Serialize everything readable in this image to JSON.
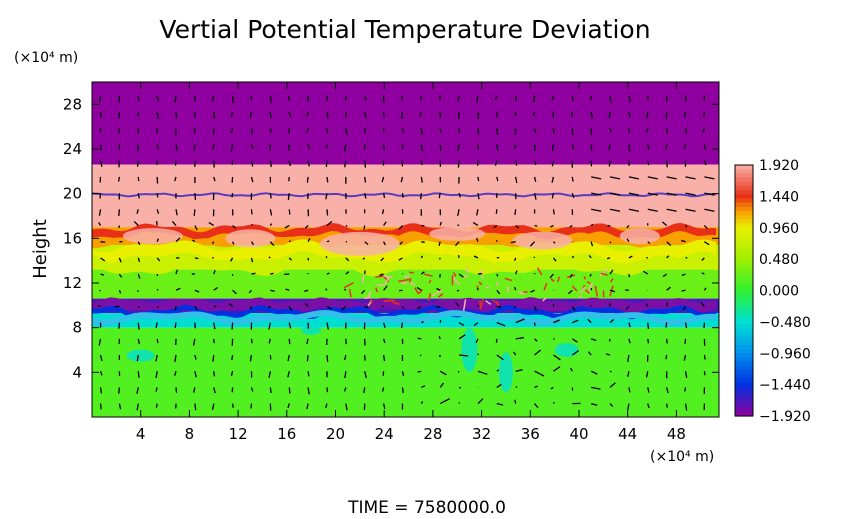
{
  "chart_data": {
    "type": "heatmap",
    "title": "Vertial Potential Temperature Deviation",
    "ylabel": "Height",
    "xunit": "(×10⁴ m)",
    "yunit": "(×10⁴ m)",
    "footer": "TIME  =  7580000.0",
    "xlim": [
      0,
      51.5
    ],
    "ylim": [
      0,
      30
    ],
    "xticks": [
      4,
      8,
      12,
      16,
      20,
      24,
      28,
      32,
      36,
      40,
      44,
      48
    ],
    "yticks": [
      4,
      8,
      12,
      16,
      20,
      24,
      28
    ],
    "colorbar": {
      "min": -1.92,
      "max": 1.92,
      "tick_labels": [
        "1.920",
        "1.440",
        "0.960",
        "0.480",
        "0.000",
        "−0.480",
        "−0.960",
        "−1.440",
        "−1.920"
      ],
      "tick_values": [
        1.92,
        1.44,
        0.96,
        0.48,
        0.0,
        -0.48,
        -0.96,
        -1.44,
        -1.92
      ]
    },
    "layers": [
      {
        "y0": 22.6,
        "y1": 30.0,
        "value": -1.92
      },
      {
        "y0": 17.0,
        "y1": 22.6,
        "value": 1.92
      },
      {
        "y0": 15.4,
        "y1": 17.0,
        "value": 1.2
      },
      {
        "y0": 13.2,
        "y1": 15.4,
        "value": 0.75
      },
      {
        "y0": 10.6,
        "y1": 13.2,
        "value": 0.25
      },
      {
        "y0": 9.3,
        "y1": 10.6,
        "value": -1.7
      },
      {
        "y0": 8.0,
        "y1": 9.3,
        "value": -0.5
      },
      {
        "y0": 0.0,
        "y1": 8.0,
        "value": 0.15
      }
    ],
    "colors": {
      "purple": "#9000a0",
      "pink": "#f8b0a8",
      "red": "#e83018",
      "orange": "#f8a000",
      "yellow": "#e8f000",
      "lightgreen": "#a0f000",
      "green": "#30f030",
      "cyan": "#00e0d0",
      "blue": "#0030e0"
    }
  }
}
